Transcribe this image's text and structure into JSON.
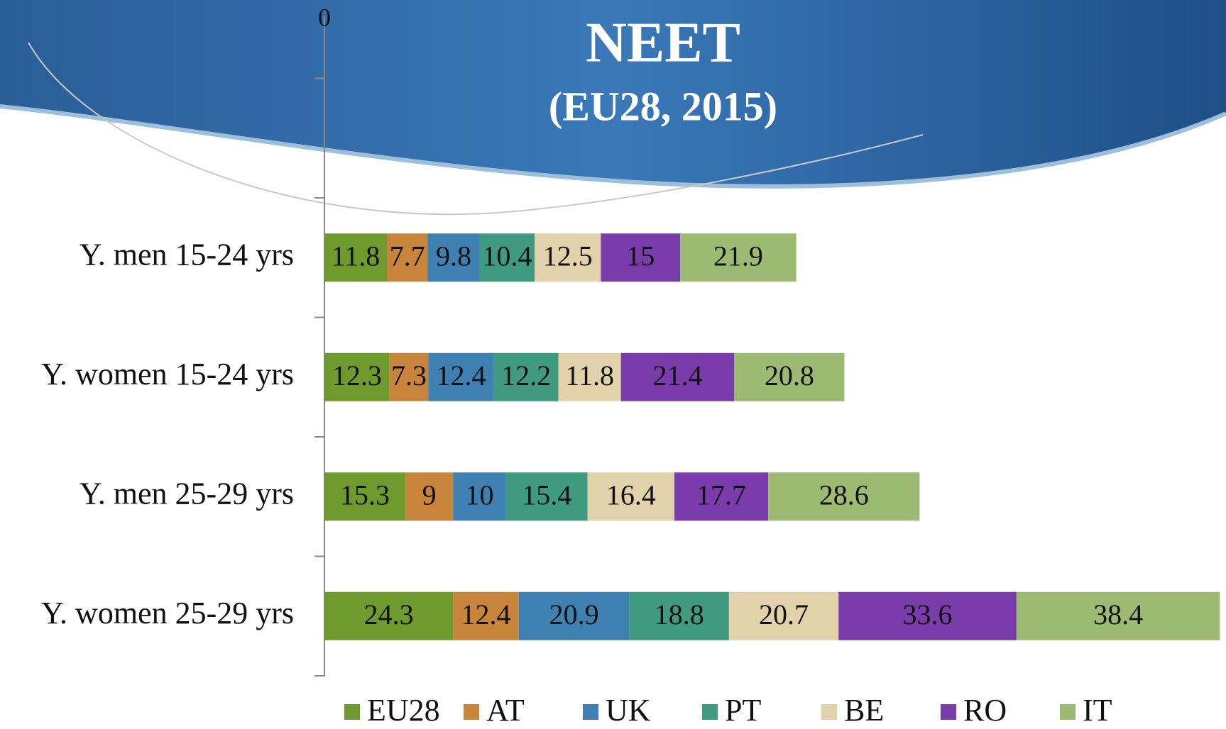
{
  "chart_data": {
    "type": "stacked-bar-horizontal",
    "title": "NEET",
    "subtitle": "(EU28, 2015)",
    "categories": [
      "Y. men 15-24 yrs",
      "Y. women 15-24 yrs",
      "Y. men 25-29 yrs",
      "Y. women 25-29 yrs"
    ],
    "series": [
      {
        "name": "EU28",
        "color": "#6e9a2e",
        "values": [
          11.8,
          12.3,
          15.3,
          24.3
        ]
      },
      {
        "name": "AT",
        "color": "#c8843a",
        "values": [
          7.7,
          7.3,
          9,
          12.4
        ]
      },
      {
        "name": "UK",
        "color": "#3f80b2",
        "values": [
          9.8,
          12.4,
          10,
          20.9
        ]
      },
      {
        "name": "PT",
        "color": "#3f9a80",
        "values": [
          10.4,
          12.2,
          15.4,
          18.8
        ]
      },
      {
        "name": "BE",
        "color": "#e2d2ac",
        "values": [
          12.5,
          11.8,
          16.4,
          20.7
        ]
      },
      {
        "name": "RO",
        "color": "#7a3caa",
        "values": [
          15,
          21.4,
          17.7,
          33.6
        ]
      },
      {
        "name": "IT",
        "color": "#9cba72",
        "values": [
          21.9,
          20.8,
          28.6,
          38.4
        ]
      }
    ],
    "xlim": [
      0,
      170
    ],
    "xticks": [
      0
    ],
    "legend": "bottom"
  }
}
